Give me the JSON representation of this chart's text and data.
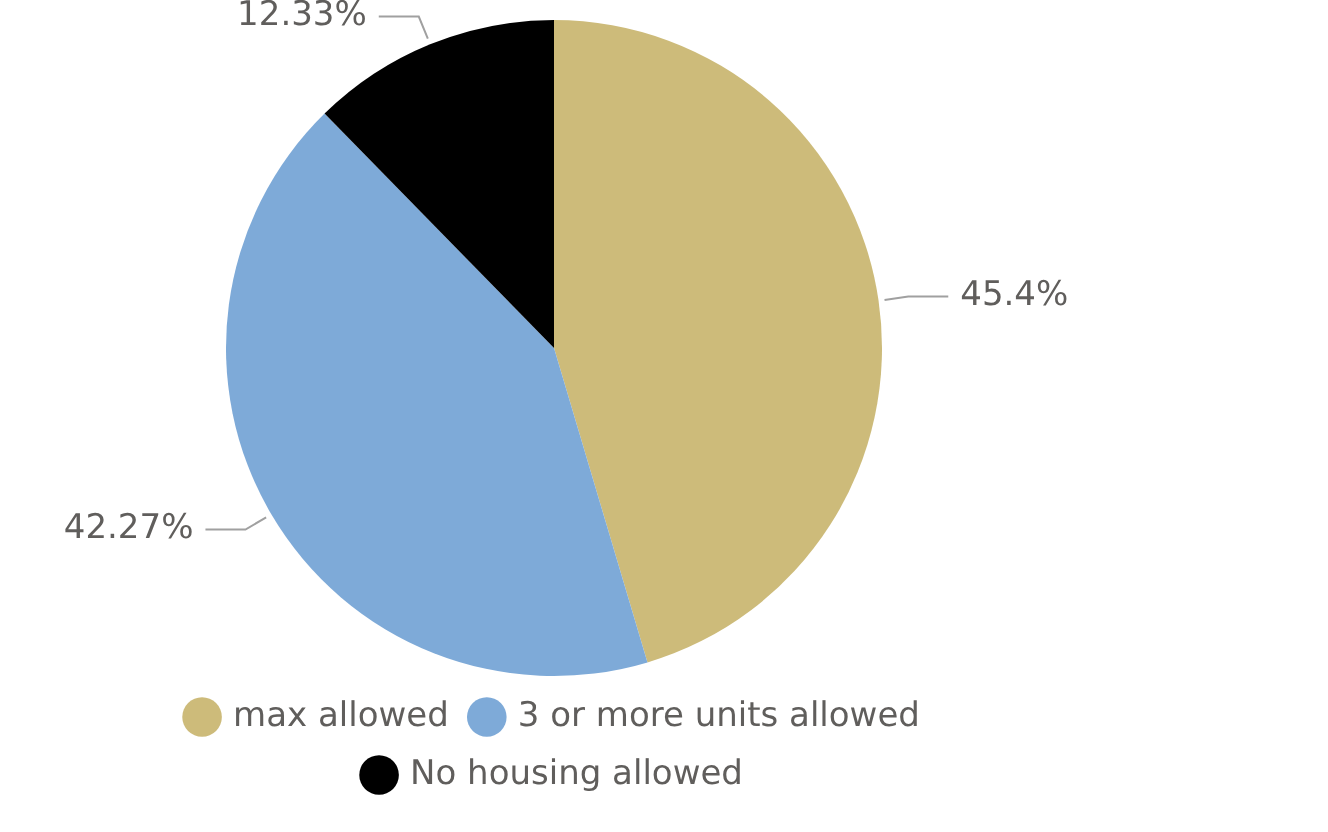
{
  "chart_data": {
    "type": "pie",
    "categories": [
      "max allowed",
      "3 or more units allowed",
      "No housing allowed"
    ],
    "values": [
      45.4,
      42.27,
      12.33
    ],
    "colors": [
      "#cdbb7a",
      "#7eaad8",
      "#000000"
    ],
    "value_labels": [
      "45.4%",
      "42.27%",
      "12.33%"
    ],
    "legend": "bottom"
  }
}
